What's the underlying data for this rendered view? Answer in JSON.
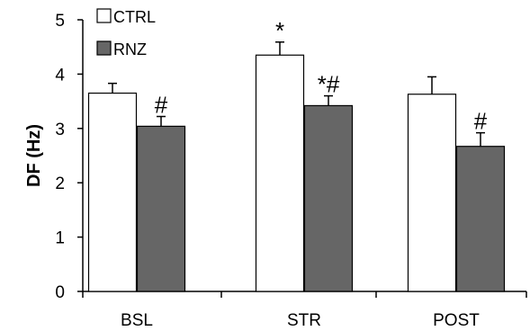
{
  "chart_data": {
    "type": "bar",
    "title": "",
    "xlabel": "",
    "ylabel": "DF (Hz)",
    "ylim": [
      0,
      5
    ],
    "yticks": [
      "0",
      "1",
      "2",
      "3",
      "4",
      "5"
    ],
    "categories": [
      "BSL",
      "STR",
      "POST"
    ],
    "series": [
      {
        "name": "CTRL",
        "values": [
          3.65,
          4.35,
          3.63
        ],
        "errors": [
          0.18,
          0.24,
          0.32
        ],
        "color": "#ffffff"
      },
      {
        "name": "RNZ",
        "values": [
          3.04,
          3.42,
          2.67
        ],
        "errors": [
          0.18,
          0.18,
          0.25
        ],
        "color": "#666666"
      }
    ],
    "annotations": [
      {
        "category": "BSL",
        "series": "RNZ",
        "text": "#"
      },
      {
        "category": "STR",
        "series": "CTRL",
        "text": "*"
      },
      {
        "category": "STR",
        "series": "RNZ",
        "text": "*#"
      },
      {
        "category": "POST",
        "series": "RNZ",
        "text": "#"
      }
    ],
    "legend": "top-left",
    "grid": false
  }
}
